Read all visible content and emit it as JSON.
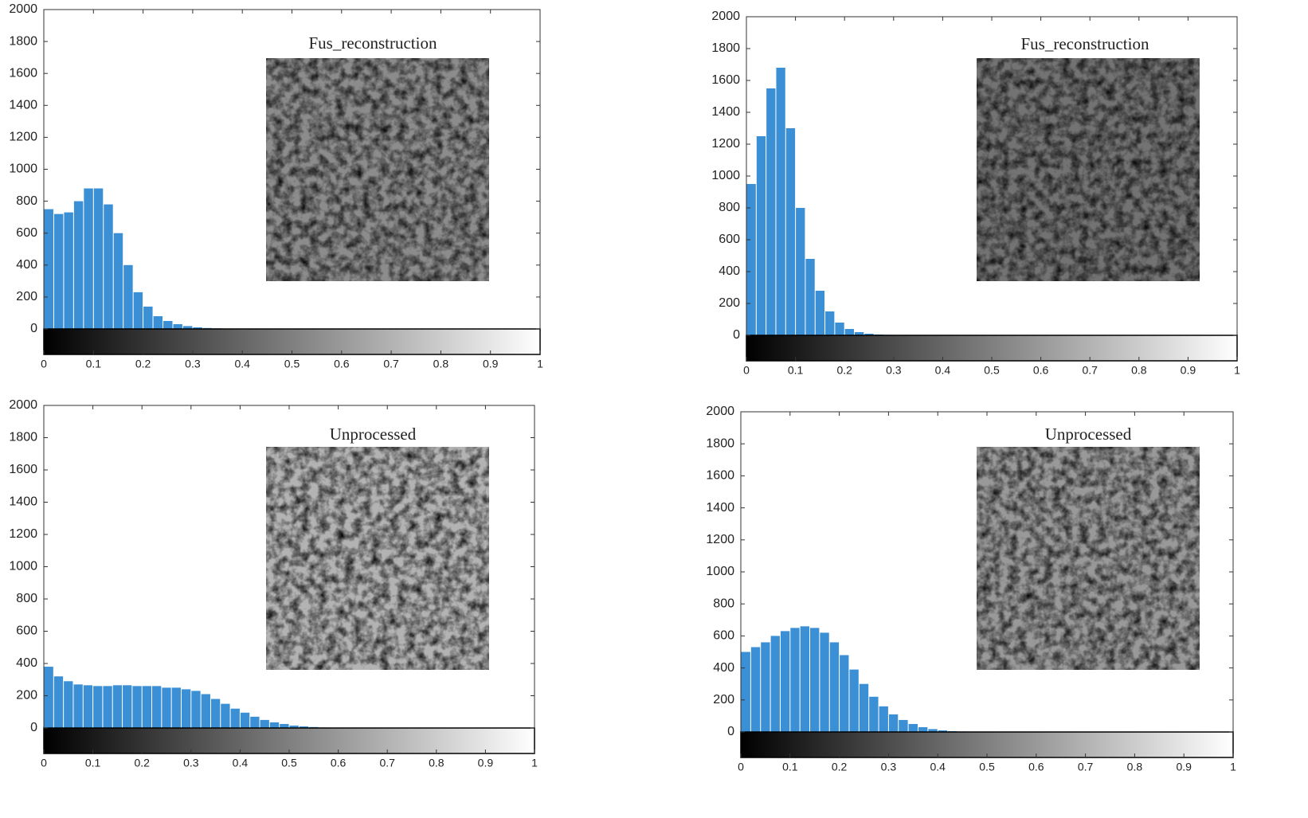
{
  "chart_data": [
    {
      "type": "histogram",
      "title": "Fus_reconstruction",
      "color": "#3b8fd4",
      "bins": [
        0,
        0.02,
        0.04,
        0.06,
        0.08,
        0.1,
        0.12,
        0.14,
        0.16,
        0.18,
        0.2,
        0.22,
        0.24,
        0.26,
        0.28,
        0.3,
        0.32,
        0.34,
        0.36,
        0.38,
        0.4,
        0.42,
        0.44,
        0.46,
        0.48,
        0.5,
        0.52,
        0.54,
        0.56,
        0.58,
        0.6
      ],
      "counts": [
        750,
        720,
        730,
        800,
        880,
        880,
        780,
        600,
        400,
        230,
        140,
        80,
        50,
        30,
        18,
        10,
        6,
        4,
        2,
        1,
        0,
        0,
        0,
        0,
        0,
        0,
        0,
        0,
        0,
        0
      ],
      "xlim": [
        0,
        1
      ],
      "xticks": [
        0,
        0.1,
        0.2,
        0.3,
        0.4,
        0.5,
        0.6,
        0.7,
        0.8,
        0.9,
        1
      ],
      "ylim": [
        0,
        2000
      ],
      "yticks": [
        0,
        200,
        400,
        600,
        800,
        1000,
        1200,
        1400,
        1600,
        1800,
        2000
      ]
    },
    {
      "type": "histogram",
      "title": "Fus_reconstruction",
      "color": "#3b8fd4",
      "bins": [
        0,
        0.02,
        0.04,
        0.06,
        0.08,
        0.1,
        0.12,
        0.14,
        0.16,
        0.18,
        0.2,
        0.22,
        0.24,
        0.26,
        0.28,
        0.3,
        0.32,
        0.34,
        0.36,
        0.38,
        0.4,
        0.42,
        0.44,
        0.46,
        0.48,
        0.5,
        0.52,
        0.54,
        0.56,
        0.58,
        0.6
      ],
      "counts": [
        950,
        1250,
        1550,
        1680,
        1300,
        800,
        480,
        280,
        150,
        80,
        40,
        20,
        10,
        5,
        3,
        1,
        0,
        0,
        0,
        0,
        0,
        0,
        0,
        0,
        0,
        0,
        0,
        0,
        0,
        0
      ],
      "xlim": [
        0,
        1
      ],
      "xticks": [
        0,
        0.1,
        0.2,
        0.3,
        0.4,
        0.5,
        0.6,
        0.7,
        0.8,
        0.9,
        1
      ],
      "ylim": [
        0,
        2000
      ],
      "yticks": [
        0,
        200,
        400,
        600,
        800,
        1000,
        1200,
        1400,
        1600,
        1800,
        2000
      ]
    },
    {
      "type": "histogram",
      "title": "Unprocessed",
      "color": "#3b8fd4",
      "bins": [
        0,
        0.02,
        0.04,
        0.06,
        0.08,
        0.1,
        0.12,
        0.14,
        0.16,
        0.18,
        0.2,
        0.22,
        0.24,
        0.26,
        0.28,
        0.3,
        0.32,
        0.34,
        0.36,
        0.38,
        0.4,
        0.42,
        0.44,
        0.46,
        0.48,
        0.5,
        0.52,
        0.54,
        0.56,
        0.58,
        0.6
      ],
      "counts": [
        380,
        320,
        290,
        270,
        265,
        260,
        260,
        265,
        265,
        260,
        260,
        260,
        250,
        250,
        240,
        230,
        210,
        180,
        150,
        120,
        95,
        70,
        50,
        35,
        25,
        15,
        10,
        6,
        3,
        1
      ],
      "xlim": [
        0,
        1
      ],
      "xticks": [
        0,
        0.1,
        0.2,
        0.3,
        0.4,
        0.5,
        0.6,
        0.7,
        0.8,
        0.9,
        1
      ],
      "ylim": [
        0,
        2000
      ],
      "yticks": [
        0,
        200,
        400,
        600,
        800,
        1000,
        1200,
        1400,
        1600,
        1800,
        2000
      ]
    },
    {
      "type": "histogram",
      "title": "Unprocessed",
      "color": "#3b8fd4",
      "bins": [
        0,
        0.02,
        0.04,
        0.06,
        0.08,
        0.1,
        0.12,
        0.14,
        0.16,
        0.18,
        0.2,
        0.22,
        0.24,
        0.26,
        0.28,
        0.3,
        0.32,
        0.34,
        0.36,
        0.38,
        0.4,
        0.42,
        0.44,
        0.46,
        0.48,
        0.5,
        0.52,
        0.54,
        0.56,
        0.58,
        0.6
      ],
      "counts": [
        500,
        530,
        560,
        600,
        630,
        650,
        660,
        650,
        620,
        560,
        480,
        390,
        300,
        220,
        160,
        110,
        75,
        50,
        30,
        18,
        10,
        5,
        3,
        1,
        0,
        0,
        0,
        0,
        0,
        0
      ],
      "xlim": [
        0,
        1
      ],
      "xticks": [
        0,
        0.1,
        0.2,
        0.3,
        0.4,
        0.5,
        0.6,
        0.7,
        0.8,
        0.9,
        1
      ],
      "ylim": [
        0,
        2000
      ],
      "yticks": [
        0,
        200,
        400,
        600,
        800,
        1000,
        1200,
        1400,
        1600,
        1800,
        2000
      ]
    }
  ]
}
